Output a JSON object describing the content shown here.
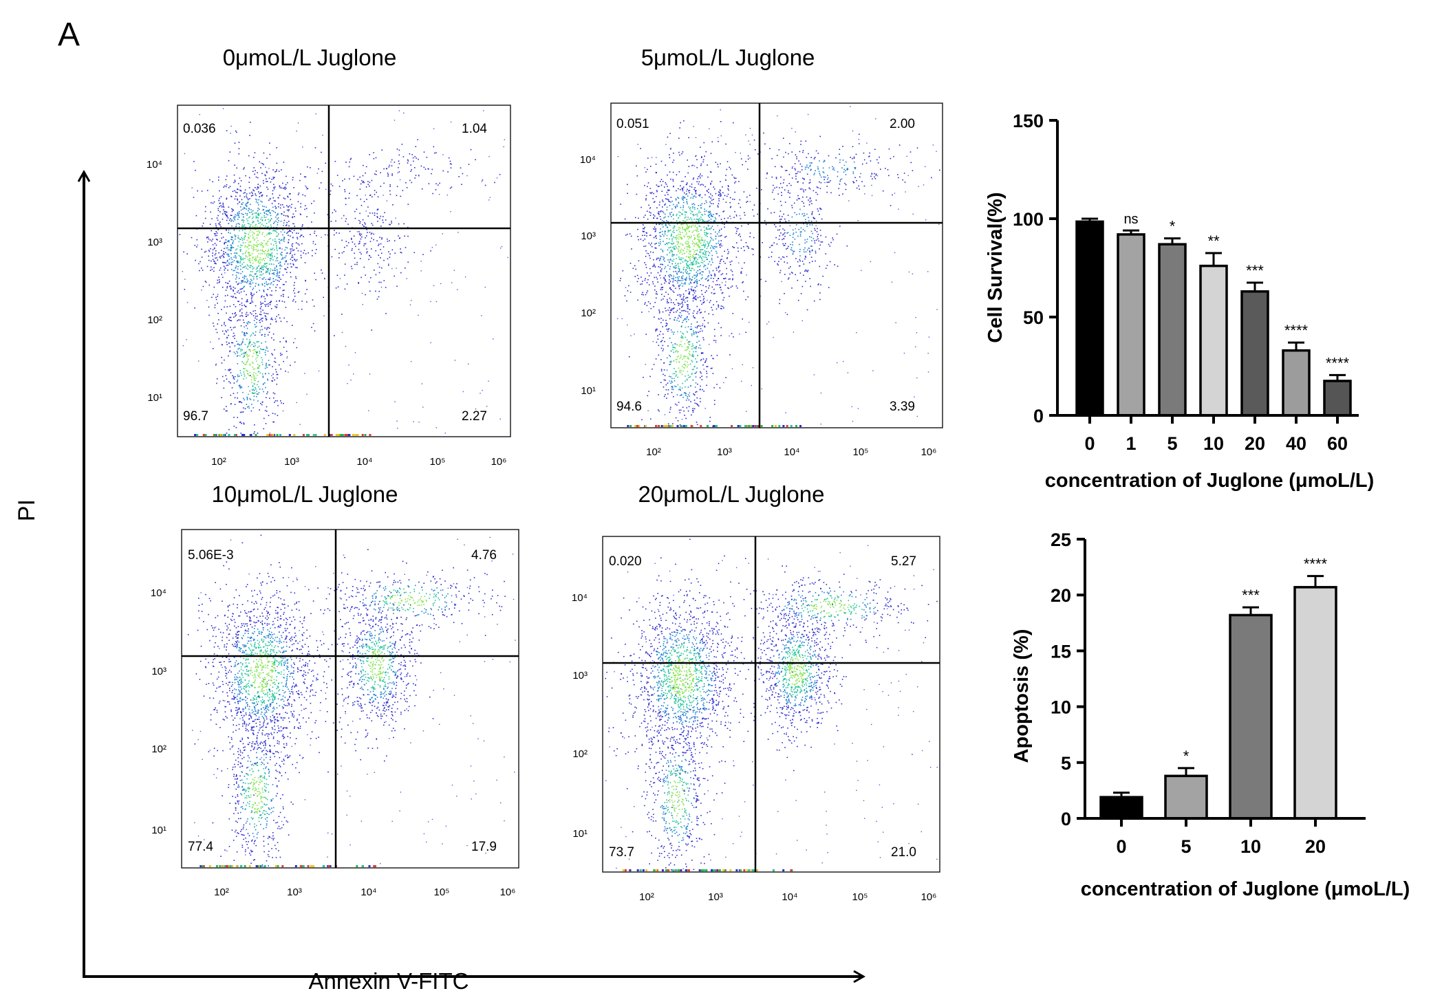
{
  "figure": {
    "panel_label": "A",
    "y_axis_label": "PI",
    "x_axis_label": "Annexin V-FITC"
  },
  "flow_plots": [
    {
      "title": "0μmoL/L Juglone",
      "quadrants": {
        "UL": "0.036",
        "UR": "1.04",
        "LL": "96.7",
        "LR": "2.27"
      },
      "early_apoptotic_cluster_strength": 0.25,
      "late_cluster_strength": 0.35
    },
    {
      "title": "5μmoL/L Juglone",
      "quadrants": {
        "UL": "0.051",
        "UR": "2.00",
        "LL": "94.6",
        "LR": "3.39"
      },
      "early_apoptotic_cluster_strength": 0.35,
      "late_cluster_strength": 0.55
    },
    {
      "title": "10μmoL/L Juglone",
      "quadrants": {
        "UL": "5.06E-3",
        "UR": "4.76",
        "LL": "77.4",
        "LR": "17.9"
      },
      "early_apoptotic_cluster_strength": 0.85,
      "late_cluster_strength": 0.9
    },
    {
      "title": "20μmoL/L Juglone",
      "quadrants": {
        "UL": "0.020",
        "UR": "5.27",
        "LL": "73.7",
        "LR": "21.0"
      },
      "early_apoptotic_cluster_strength": 1.0,
      "late_cluster_strength": 1.0
    }
  ],
  "flow_axis": {
    "x_ticks": [
      "10²",
      "10³",
      "10⁴",
      "10⁵",
      "10⁶"
    ],
    "y_ticks": [
      "10¹",
      "10²",
      "10³",
      "10⁴"
    ]
  },
  "chart_data": [
    {
      "type": "bar",
      "title": "",
      "xlabel": "concentration of Juglone (μmoL/L)",
      "ylabel": "Cell Survival(%)",
      "categories": [
        "0",
        "1",
        "5",
        "10",
        "20",
        "40",
        "60"
      ],
      "values": [
        98.5,
        92,
        87,
        76,
        63,
        33,
        17.5
      ],
      "errors": [
        1.5,
        2,
        3,
        6.5,
        4.5,
        4,
        3
      ],
      "significance": [
        "",
        "ns",
        "*",
        "**",
        "***",
        "****",
        "****"
      ],
      "bar_colors": [
        "#000000",
        "#a3a3a3",
        "#7a7a7a",
        "#d4d4d4",
        "#5a5a5a",
        "#9c9c9c",
        "#555555"
      ],
      "ylim": [
        0,
        150
      ],
      "yticks": [
        0,
        50,
        100,
        150
      ]
    },
    {
      "type": "bar",
      "title": "",
      "xlabel": "concentration of Juglone (μmoL/L)",
      "ylabel": "Apoptosis (%)",
      "categories": [
        "0",
        "5",
        "10",
        "20"
      ],
      "values": [
        1.9,
        3.8,
        18.2,
        20.7
      ],
      "errors": [
        0.4,
        0.7,
        0.7,
        1.0
      ],
      "significance": [
        "",
        "*",
        "***",
        "****"
      ],
      "bar_colors": [
        "#000000",
        "#a3a3a3",
        "#7a7a7a",
        "#d4d4d4"
      ],
      "ylim": [
        0,
        25
      ],
      "yticks": [
        0,
        5,
        10,
        15,
        20,
        25
      ]
    }
  ]
}
